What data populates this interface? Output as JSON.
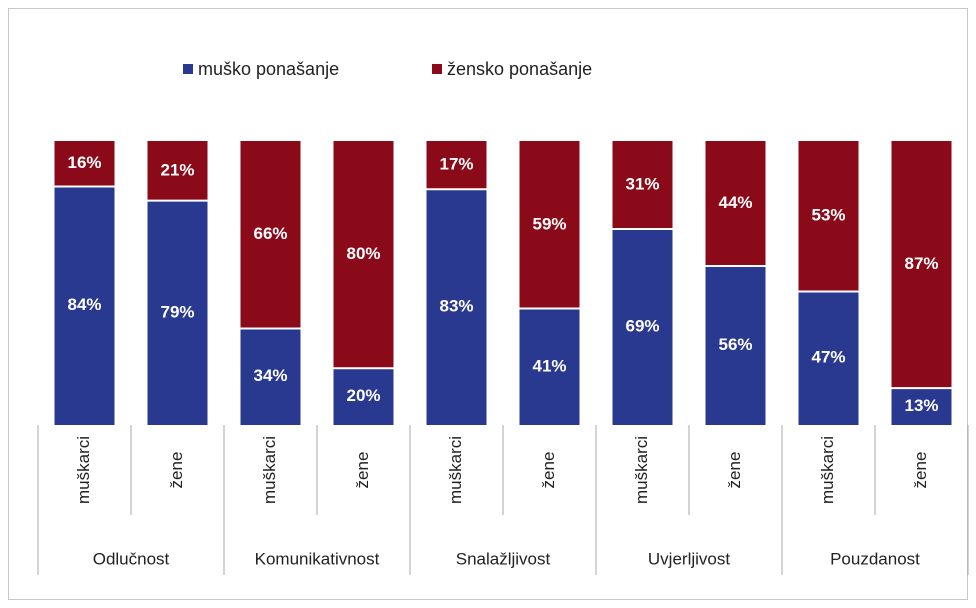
{
  "chart_data": {
    "type": "stacked_bar_100",
    "categories": [
      "muškarci",
      "žene",
      "muškarci",
      "žene",
      "muškarci",
      "žene",
      "muškarci",
      "žene",
      "muškarci",
      "žene"
    ],
    "groups": [
      "Odlučnost",
      "Komunikativnost",
      "Snalažljivost",
      "Uvjerljivost",
      "Pouzdanost"
    ],
    "series": [
      {
        "name": "muško ponašanje",
        "color": "#2a3990",
        "values": [
          84,
          79,
          34,
          20,
          83,
          41,
          69,
          56,
          47,
          13
        ],
        "value_labels": [
          "84%",
          "79%",
          "34%",
          "20%",
          "83%",
          "41%",
          "69%",
          "56%",
          "47%",
          "13%"
        ]
      },
      {
        "name": "žensko ponašanje",
        "color": "#8b0a1a",
        "values": [
          16,
          21,
          66,
          80,
          17,
          59,
          31,
          44,
          53,
          87
        ],
        "value_labels": [
          "16%",
          "21%",
          "66%",
          "80%",
          "17%",
          "59%",
          "31%",
          "44%",
          "53%",
          "87%"
        ]
      }
    ],
    "ylim": [
      0,
      100
    ],
    "legend": "top"
  }
}
